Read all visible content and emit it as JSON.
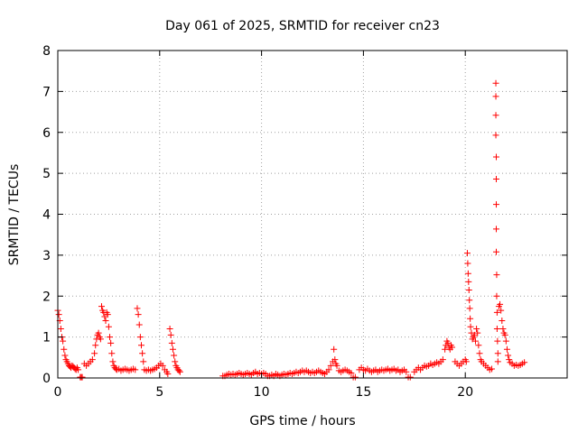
{
  "chart_data": {
    "type": "scatter",
    "title": "Day 061 of 2025, SRMTID for receiver cn23",
    "xlabel": "GPS time / hours",
    "ylabel": "SRMTID / TECUs",
    "xlim": [
      0,
      25
    ],
    "ylim": [
      0,
      8
    ],
    "xticks": [
      0,
      5,
      10,
      15,
      20
    ],
    "yticks": [
      0,
      1,
      2,
      3,
      4,
      5,
      6,
      7,
      8
    ],
    "grid": true,
    "marker": "plus",
    "color": "#ff0000",
    "series": [
      {
        "name": "SRMTID",
        "points": [
          [
            0.0,
            1.65
          ],
          [
            0.05,
            1.55
          ],
          [
            0.1,
            1.4
          ],
          [
            0.15,
            1.2
          ],
          [
            0.2,
            1.0
          ],
          [
            0.25,
            0.9
          ],
          [
            0.3,
            0.7
          ],
          [
            0.35,
            0.55
          ],
          [
            0.4,
            0.45
          ],
          [
            0.45,
            0.4
          ],
          [
            0.5,
            0.35
          ],
          [
            0.55,
            0.3
          ],
          [
            0.6,
            0.28
          ],
          [
            0.65,
            0.25
          ],
          [
            0.7,
            0.3
          ],
          [
            0.75,
            0.28
          ],
          [
            0.8,
            0.25
          ],
          [
            0.85,
            0.22
          ],
          [
            0.9,
            0.2
          ],
          [
            0.95,
            0.25
          ],
          [
            1.0,
            0.2
          ],
          [
            1.1,
            0.02
          ],
          [
            1.15,
            0.02
          ],
          [
            1.2,
            0.02
          ],
          [
            1.3,
            0.35
          ],
          [
            1.4,
            0.3
          ],
          [
            1.5,
            0.35
          ],
          [
            1.6,
            0.4
          ],
          [
            1.7,
            0.45
          ],
          [
            1.8,
            0.6
          ],
          [
            1.85,
            0.8
          ],
          [
            1.9,
            0.95
          ],
          [
            1.95,
            1.05
          ],
          [
            2.0,
            1.1
          ],
          [
            2.05,
            1.0
          ],
          [
            2.1,
            0.95
          ],
          [
            2.15,
            1.75
          ],
          [
            2.2,
            1.65
          ],
          [
            2.25,
            1.6
          ],
          [
            2.3,
            1.5
          ],
          [
            2.35,
            1.4
          ],
          [
            2.4,
            1.6
          ],
          [
            2.45,
            1.55
          ],
          [
            2.5,
            1.25
          ],
          [
            2.55,
            1.0
          ],
          [
            2.6,
            0.85
          ],
          [
            2.65,
            0.6
          ],
          [
            2.7,
            0.4
          ],
          [
            2.75,
            0.3
          ],
          [
            2.8,
            0.25
          ],
          [
            2.85,
            0.22
          ],
          [
            2.9,
            0.2
          ],
          [
            3.0,
            0.22
          ],
          [
            3.1,
            0.18
          ],
          [
            3.2,
            0.2
          ],
          [
            3.3,
            0.22
          ],
          [
            3.4,
            0.2
          ],
          [
            3.5,
            0.18
          ],
          [
            3.6,
            0.2
          ],
          [
            3.7,
            0.22
          ],
          [
            3.8,
            0.2
          ],
          [
            3.9,
            1.7
          ],
          [
            3.95,
            1.55
          ],
          [
            4.0,
            1.3
          ],
          [
            4.05,
            1.0
          ],
          [
            4.1,
            0.8
          ],
          [
            4.15,
            0.6
          ],
          [
            4.2,
            0.4
          ],
          [
            4.25,
            0.2
          ],
          [
            4.35,
            0.18
          ],
          [
            4.45,
            0.2
          ],
          [
            4.55,
            0.18
          ],
          [
            4.65,
            0.2
          ],
          [
            4.75,
            0.22
          ],
          [
            4.85,
            0.25
          ],
          [
            4.95,
            0.3
          ],
          [
            5.05,
            0.35
          ],
          [
            5.15,
            0.3
          ],
          [
            5.25,
            0.2
          ],
          [
            5.35,
            0.15
          ],
          [
            5.4,
            0.1
          ],
          [
            5.5,
            1.2
          ],
          [
            5.55,
            1.05
          ],
          [
            5.6,
            0.85
          ],
          [
            5.65,
            0.7
          ],
          [
            5.7,
            0.55
          ],
          [
            5.75,
            0.4
          ],
          [
            5.8,
            0.3
          ],
          [
            5.85,
            0.25
          ],
          [
            5.9,
            0.2
          ],
          [
            5.95,
            0.18
          ],
          [
            6.0,
            0.15
          ],
          [
            8.1,
            0.05
          ],
          [
            8.2,
            0.05
          ],
          [
            8.3,
            0.08
          ],
          [
            8.4,
            0.1
          ],
          [
            8.5,
            0.08
          ],
          [
            8.6,
            0.1
          ],
          [
            8.7,
            0.08
          ],
          [
            8.8,
            0.1
          ],
          [
            8.9,
            0.12
          ],
          [
            9.0,
            0.1
          ],
          [
            9.1,
            0.08
          ],
          [
            9.2,
            0.1
          ],
          [
            9.3,
            0.12
          ],
          [
            9.4,
            0.1
          ],
          [
            9.5,
            0.08
          ],
          [
            9.6,
            0.12
          ],
          [
            9.7,
            0.15
          ],
          [
            9.8,
            0.1
          ],
          [
            9.9,
            0.12
          ],
          [
            10.0,
            0.1
          ],
          [
            10.1,
            0.12
          ],
          [
            10.2,
            0.1
          ],
          [
            10.3,
            0.05
          ],
          [
            10.4,
            0.05
          ],
          [
            10.5,
            0.08
          ],
          [
            10.6,
            0.05
          ],
          [
            10.7,
            0.1
          ],
          [
            10.8,
            0.08
          ],
          [
            10.9,
            0.05
          ],
          [
            11.0,
            0.08
          ],
          [
            11.1,
            0.1
          ],
          [
            11.2,
            0.08
          ],
          [
            11.3,
            0.1
          ],
          [
            11.4,
            0.12
          ],
          [
            11.5,
            0.1
          ],
          [
            11.6,
            0.12
          ],
          [
            11.7,
            0.15
          ],
          [
            11.8,
            0.12
          ],
          [
            11.9,
            0.15
          ],
          [
            12.0,
            0.18
          ],
          [
            12.1,
            0.15
          ],
          [
            12.2,
            0.18
          ],
          [
            12.3,
            0.15
          ],
          [
            12.4,
            0.12
          ],
          [
            12.5,
            0.15
          ],
          [
            12.6,
            0.12
          ],
          [
            12.7,
            0.15
          ],
          [
            12.8,
            0.18
          ],
          [
            12.9,
            0.15
          ],
          [
            13.0,
            0.12
          ],
          [
            13.1,
            0.1
          ],
          [
            13.2,
            0.15
          ],
          [
            13.3,
            0.2
          ],
          [
            13.4,
            0.3
          ],
          [
            13.5,
            0.4
          ],
          [
            13.55,
            0.7
          ],
          [
            13.6,
            0.45
          ],
          [
            13.65,
            0.35
          ],
          [
            13.7,
            0.3
          ],
          [
            13.8,
            0.18
          ],
          [
            13.9,
            0.15
          ],
          [
            14.0,
            0.18
          ],
          [
            14.1,
            0.2
          ],
          [
            14.2,
            0.18
          ],
          [
            14.3,
            0.15
          ],
          [
            14.4,
            0.12
          ],
          [
            14.5,
            0.02
          ],
          [
            14.6,
            0.02
          ],
          [
            14.8,
            0.2
          ],
          [
            14.9,
            0.25
          ],
          [
            15.0,
            0.2
          ],
          [
            15.1,
            0.18
          ],
          [
            15.2,
            0.22
          ],
          [
            15.3,
            0.18
          ],
          [
            15.4,
            0.15
          ],
          [
            15.5,
            0.18
          ],
          [
            15.6,
            0.2
          ],
          [
            15.7,
            0.15
          ],
          [
            15.8,
            0.18
          ],
          [
            15.9,
            0.2
          ],
          [
            16.0,
            0.18
          ],
          [
            16.1,
            0.2
          ],
          [
            16.2,
            0.22
          ],
          [
            16.3,
            0.18
          ],
          [
            16.4,
            0.2
          ],
          [
            16.5,
            0.22
          ],
          [
            16.6,
            0.18
          ],
          [
            16.7,
            0.2
          ],
          [
            16.8,
            0.15
          ],
          [
            16.9,
            0.18
          ],
          [
            17.0,
            0.2
          ],
          [
            17.1,
            0.15
          ],
          [
            17.2,
            0.02
          ],
          [
            17.3,
            0.02
          ],
          [
            17.5,
            0.15
          ],
          [
            17.6,
            0.2
          ],
          [
            17.7,
            0.25
          ],
          [
            17.8,
            0.2
          ],
          [
            17.9,
            0.25
          ],
          [
            18.0,
            0.3
          ],
          [
            18.1,
            0.28
          ],
          [
            18.2,
            0.3
          ],
          [
            18.3,
            0.35
          ],
          [
            18.4,
            0.32
          ],
          [
            18.5,
            0.35
          ],
          [
            18.6,
            0.38
          ],
          [
            18.7,
            0.35
          ],
          [
            18.8,
            0.4
          ],
          [
            18.9,
            0.45
          ],
          [
            19.0,
            0.7
          ],
          [
            19.05,
            0.8
          ],
          [
            19.1,
            0.9
          ],
          [
            19.15,
            0.85
          ],
          [
            19.2,
            0.75
          ],
          [
            19.25,
            0.7
          ],
          [
            19.3,
            0.8
          ],
          [
            19.35,
            0.75
          ],
          [
            19.5,
            0.4
          ],
          [
            19.6,
            0.35
          ],
          [
            19.7,
            0.3
          ],
          [
            19.8,
            0.35
          ],
          [
            19.9,
            0.4
          ],
          [
            20.0,
            0.45
          ],
          [
            20.05,
            0.4
          ],
          [
            20.1,
            3.05
          ],
          [
            20.12,
            2.8
          ],
          [
            20.14,
            2.55
          ],
          [
            20.16,
            2.35
          ],
          [
            20.18,
            2.15
          ],
          [
            20.2,
            1.9
          ],
          [
            20.22,
            1.7
          ],
          [
            20.24,
            1.45
          ],
          [
            20.26,
            1.25
          ],
          [
            20.3,
            1.1
          ],
          [
            20.35,
            0.95
          ],
          [
            20.4,
            1.0
          ],
          [
            20.45,
            1.05
          ],
          [
            20.5,
            0.9
          ],
          [
            20.55,
            1.2
          ],
          [
            20.6,
            1.1
          ],
          [
            20.65,
            0.8
          ],
          [
            20.7,
            0.6
          ],
          [
            20.75,
            0.45
          ],
          [
            20.8,
            0.4
          ],
          [
            20.9,
            0.35
          ],
          [
            21.0,
            0.3
          ],
          [
            21.1,
            0.25
          ],
          [
            21.2,
            0.2
          ],
          [
            21.3,
            0.22
          ],
          [
            21.5,
            7.2
          ],
          [
            21.5,
            6.88
          ],
          [
            21.5,
            6.42
          ],
          [
            21.5,
            5.93
          ],
          [
            21.52,
            5.4
          ],
          [
            21.52,
            4.86
          ],
          [
            21.52,
            4.24
          ],
          [
            21.52,
            3.64
          ],
          [
            21.52,
            3.08
          ],
          [
            21.54,
            2.52
          ],
          [
            21.54,
            2.0
          ],
          [
            21.56,
            1.6
          ],
          [
            21.56,
            1.2
          ],
          [
            21.58,
            0.9
          ],
          [
            21.6,
            0.6
          ],
          [
            21.6,
            0.4
          ],
          [
            21.65,
            1.75
          ],
          [
            21.7,
            1.8
          ],
          [
            21.75,
            1.65
          ],
          [
            21.8,
            1.4
          ],
          [
            21.85,
            1.2
          ],
          [
            21.9,
            1.1
          ],
          [
            21.95,
            1.05
          ],
          [
            22.0,
            0.9
          ],
          [
            22.05,
            0.7
          ],
          [
            22.1,
            0.55
          ],
          [
            22.15,
            0.45
          ],
          [
            22.2,
            0.38
          ],
          [
            22.3,
            0.35
          ],
          [
            22.4,
            0.3
          ],
          [
            22.5,
            0.32
          ],
          [
            22.6,
            0.3
          ],
          [
            22.7,
            0.32
          ],
          [
            22.8,
            0.35
          ],
          [
            22.9,
            0.38
          ]
        ]
      }
    ]
  }
}
